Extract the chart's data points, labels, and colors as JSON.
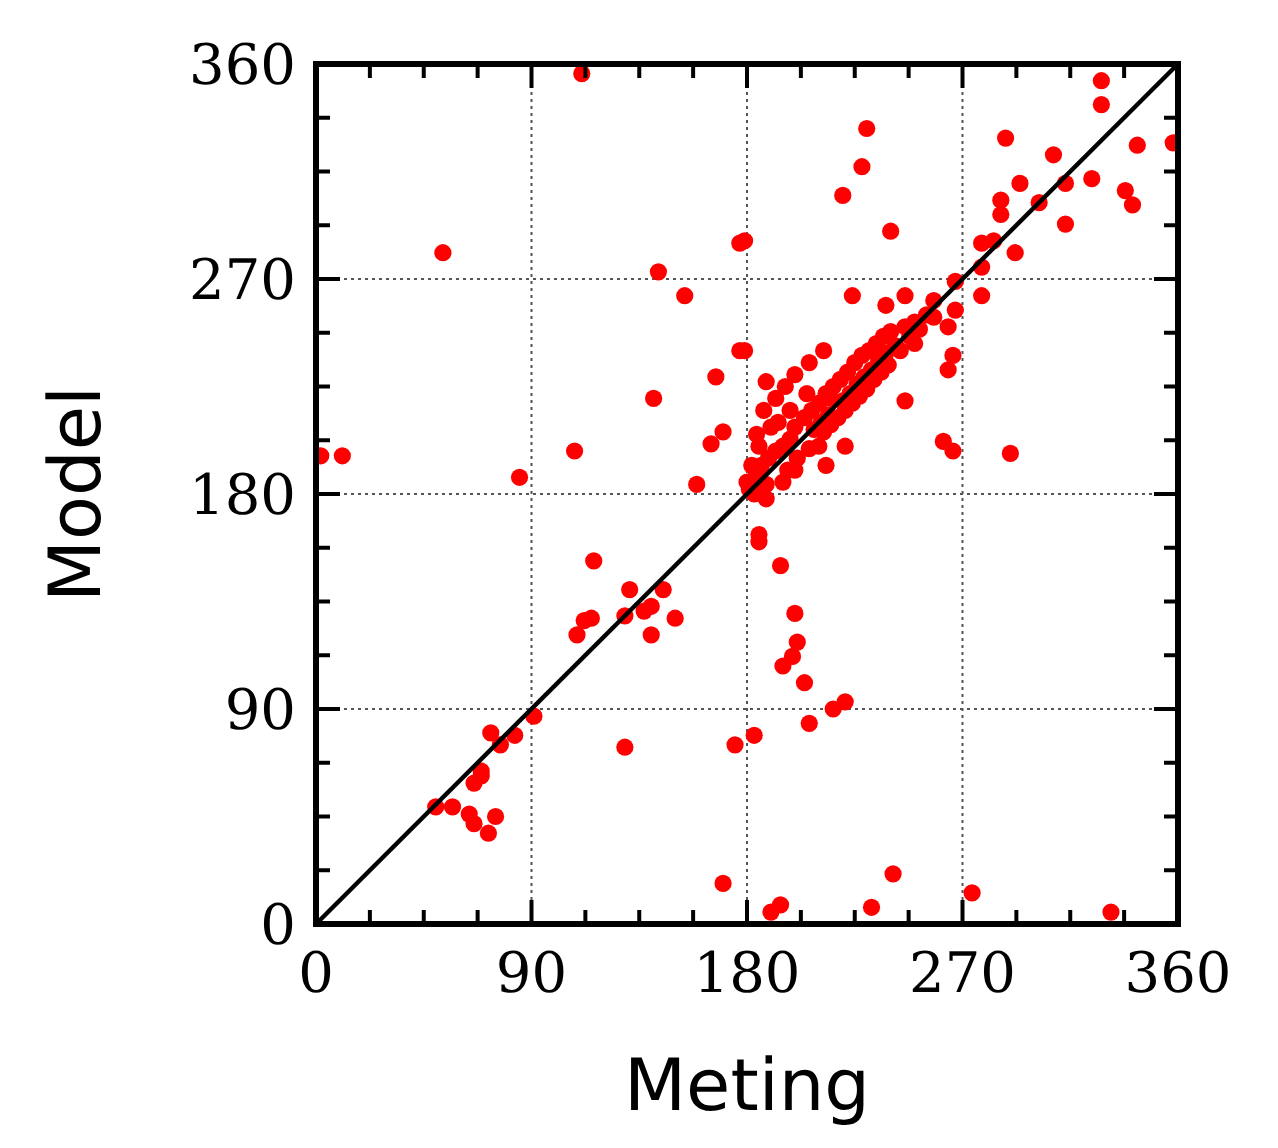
{
  "chart_data": {
    "type": "scatter",
    "xlabel": "Meting",
    "ylabel": "Model",
    "xlim": [
      0,
      360
    ],
    "ylim": [
      0,
      360
    ],
    "xticks": [
      0,
      {
        "value": 22.5,
        "label": null
      },
      {
        "value": 45,
        "label": null
      },
      {
        "value": 67.5,
        "label": null
      },
      90,
      {
        "value": 112.5,
        "label": null
      },
      {
        "value": 135,
        "label": null
      },
      {
        "value": 157.5,
        "label": null
      },
      180,
      {
        "value": 202.5,
        "label": null
      },
      {
        "value": 225,
        "label": null
      },
      {
        "value": 247.5,
        "label": null
      },
      270,
      {
        "value": 292.5,
        "label": null
      },
      {
        "value": 315,
        "label": null
      },
      {
        "value": 337.5,
        "label": null
      },
      360
    ],
    "yticks": [
      0,
      {
        "value": 22.5,
        "label": null
      },
      {
        "value": 45,
        "label": null
      },
      {
        "value": 67.5,
        "label": null
      },
      90,
      {
        "value": 112.5,
        "label": null
      },
      {
        "value": 135,
        "label": null
      },
      {
        "value": 157.5,
        "label": null
      },
      180,
      {
        "value": 202.5,
        "label": null
      },
      {
        "value": 225,
        "label": null
      },
      {
        "value": 247.5,
        "label": null
      },
      270,
      {
        "value": 292.5,
        "label": null
      },
      {
        "value": 315,
        "label": null
      },
      {
        "value": 337.5,
        "label": null
      },
      360
    ],
    "grid": true,
    "marker": "circle",
    "series": [
      {
        "color": "#ff0000",
        "x": [
          111,
          53,
          177,
          143,
          154,
          177,
          167,
          141,
          170,
          165,
          108,
          2,
          11,
          85,
          159,
          328,
          328,
          230,
          288,
          228,
          308,
          343,
          358,
          220,
          294,
          313,
          324,
          338,
          341,
          286,
          286,
          302,
          313,
          240,
          278,
          283,
          292,
          278,
          267,
          278,
          224,
          238,
          246,
          258,
          267,
          264,
          250,
          266,
          264,
          246,
          262,
          266,
          290,
          188,
          179,
          179,
          221,
          213,
          116,
          131,
          145,
          112,
          115,
          109,
          129,
          137,
          140,
          140,
          150,
          91,
          73,
          83,
          77,
          129,
          175,
          69,
          66,
          69,
          50,
          57,
          64,
          66,
          75,
          72,
          170,
          185,
          185,
          194,
          200,
          201,
          199,
          195,
          204,
          216,
          221,
          206,
          183,
          241,
          232,
          190,
          194,
          274,
          332,
          181,
          183,
          184,
          186,
          188,
          189,
          192,
          195,
          197,
          198,
          200,
          201,
          204,
          206,
          207,
          208,
          210,
          211,
          212,
          213,
          214,
          215,
          216,
          218,
          219,
          220,
          221,
          222,
          223,
          224,
          225,
          226,
          227,
          228,
          229,
          230,
          231,
          232,
          233,
          234,
          235,
          236,
          237,
          238,
          239,
          240,
          242,
          244,
          246,
          248,
          250,
          252,
          255,
          258,
          182,
          185,
          190,
          188,
          195,
          200,
          210,
          215,
          205,
          198,
          193,
          180,
          184,
          187,
          192,
          196,
          200,
          206,
          212
        ],
        "values": [
          356,
          281,
          285,
          273,
          263,
          240,
          229,
          220,
          206,
          201,
          198,
          196,
          196,
          187,
          184,
          353,
          343,
          333,
          329,
          317,
          322,
          326,
          327,
          305,
          310,
          310,
          312,
          307,
          301,
          303,
          297,
          302,
          293,
          290,
          285,
          286,
          281,
          275,
          269,
          263,
          263,
          259,
          263,
          261,
          257,
          250,
          243,
          238,
          232,
          219,
          202,
          198,
          197,
          227,
          240,
          286,
          200,
          192,
          152,
          140,
          140,
          127,
          128,
          121,
          129,
          131,
          133,
          121,
          128,
          87,
          80,
          79,
          75,
          74,
          75,
          64,
          59,
          62,
          49,
          49,
          46,
          42,
          45,
          38,
          17,
          163,
          160,
          150,
          130,
          118,
          112,
          108,
          101,
          90,
          93,
          84,
          79,
          21,
          7,
          5,
          8,
          13,
          5,
          182,
          180,
          188,
          192,
          184,
          195,
          198,
          200,
          190,
          203,
          208,
          195,
          212,
          199,
          215,
          207,
          218,
          210,
          206,
          222,
          213,
          209,
          225,
          212,
          228,
          219,
          215,
          231,
          222,
          218,
          235,
          226,
          221,
          238,
          229,
          224,
          240,
          232,
          228,
          243,
          236,
          231,
          246,
          239,
          234,
          248,
          242,
          240,
          250,
          246,
          252,
          249,
          255,
          254,
          192,
          200,
          208,
          178,
          185,
          190,
          200,
          220,
          222,
          215,
          210,
          185,
          205,
          215,
          220,
          225,
          230,
          235,
          240
        ]
      },
      {
        "type": "line",
        "marker": "none",
        "color": "#000000",
        "x": [
          0,
          360
        ],
        "values": [
          0,
          360
        ]
      }
    ]
  }
}
